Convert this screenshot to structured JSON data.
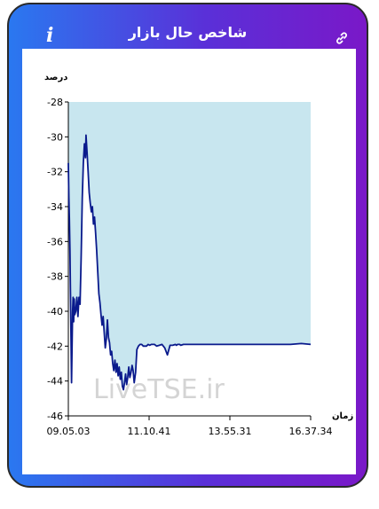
{
  "header": {
    "title": "شاخص حال بازار",
    "info_icon": "info-icon",
    "share_icon": "link-icon"
  },
  "watermark": "LiveTSE.ir",
  "colors": {
    "gradient_start": "#2a78f0",
    "gradient_end": "#7a18c8",
    "area_fill": "#c8e6ef",
    "line": "#0a1a8c",
    "watermark": "#d4d4d4"
  },
  "chart_data": {
    "type": "area",
    "ylabel": "درصد",
    "xlabel": "زمان",
    "ylim": [
      -46,
      -28
    ],
    "yticks": [
      "-28",
      "-30",
      "-32",
      "-34",
      "-36",
      "-38",
      "-40",
      "-42",
      "-44",
      "-46"
    ],
    "xticks": [
      "09.05.03",
      "11.10.41",
      "13.55.31",
      "16.37.34"
    ],
    "x": [
      "09:05:03",
      "09:06:00",
      "09:07:00",
      "09:08:00",
      "09:09:00",
      "09:10:00",
      "09:11:00",
      "09:12:00",
      "09:13:00",
      "09:14:00",
      "09:15:00",
      "09:16:00",
      "09:17:00",
      "09:19:00",
      "09:21:00",
      "09:23:00",
      "09:25:00",
      "09:27:00",
      "09:29:00",
      "09:31:00",
      "09:33:00",
      "09:35:00",
      "09:37:00",
      "09:38:00",
      "09:40:00",
      "09:42:00",
      "09:44:00",
      "09:46:00",
      "09:48:00",
      "09:50:00",
      "09:52:00",
      "09:54:00",
      "09:56:00",
      "09:58:00",
      "10:00:00",
      "10:02:00",
      "10:04:00",
      "10:06:00",
      "10:08:00",
      "10:10:00",
      "10:12:00",
      "10:14:00",
      "10:16:00",
      "10:18:00",
      "10:20:00",
      "10:22:00",
      "10:24:00",
      "10:26:00",
      "10:28:00",
      "10:30:00",
      "10:32:00",
      "10:34:00",
      "10:36:00",
      "10:38:00",
      "10:40:00",
      "10:42:00",
      "10:44:00",
      "10:46:00",
      "10:48:00",
      "10:50:00",
      "10:52:00",
      "10:54:00",
      "10:56:00",
      "10:58:00",
      "11:00:00",
      "11:02:00",
      "11:04:00",
      "11:06:00",
      "11:08:00",
      "11:10:41",
      "11:13:00",
      "11:16:00",
      "11:19:00",
      "11:22:00",
      "11:25:00",
      "11:28:00",
      "11:31:00",
      "11:34:00",
      "11:37:00",
      "11:40:00",
      "11:43:00",
      "11:46:00",
      "11:50:00",
      "11:55:00",
      "12:00:00",
      "12:05:00",
      "12:10:00",
      "12:15:00",
      "12:20:00",
      "12:25:00",
      "12:27:00",
      "12:29:00",
      "12:31:00",
      "12:33:00",
      "12:35:00",
      "12:40:00",
      "13:00:00",
      "13:30:00",
      "14:00:00",
      "14:30:00",
      "15:00:00",
      "15:30:00",
      "16:00:00",
      "16:20:00",
      "16:37:34"
    ],
    "values": [
      -31.5,
      -33.5,
      -34.8,
      -36.5,
      -39,
      -41.5,
      -44.1,
      -42,
      -40,
      -39.2,
      -40.6,
      -39.3,
      -40.2,
      -40,
      -39.2,
      -40.3,
      -39.2,
      -39.6,
      -37,
      -33.5,
      -31.5,
      -30.4,
      -31.2,
      -29.9,
      -30.9,
      -32,
      -33.2,
      -33.8,
      -34.3,
      -34,
      -35,
      -34.6,
      -35.5,
      -36.5,
      -37.8,
      -39,
      -39.5,
      -40.2,
      -40.8,
      -40.3,
      -41.2,
      -42.1,
      -41.6,
      -40.5,
      -41.5,
      -41.8,
      -42.5,
      -42.3,
      -43,
      -43.4,
      -42.8,
      -43.5,
      -43,
      -43.7,
      -43.2,
      -43.9,
      -43.5,
      -44.3,
      -44.5,
      -44.1,
      -43.6,
      -44.2,
      -43.8,
      -43.2,
      -43.8,
      -43.5,
      -43.1,
      -43.4,
      -44.1,
      -43.5,
      -42.2,
      -42,
      -41.9,
      -41.9,
      -42,
      -42,
      -42,
      -41.9,
      -41.95,
      -41.9,
      -41.9,
      -41.9,
      -42,
      -41.95,
      -41.9,
      -42.1,
      -42.5,
      -41.95,
      -41.95,
      -41.9,
      -41.95,
      -41.9,
      -41.9,
      -41.9,
      -41.95,
      -41.9,
      -41.9,
      -41.9,
      -41.9,
      -41.9,
      -41.9,
      -41.9,
      -41.9,
      -41.85,
      -41.9
    ],
    "legend": "none",
    "grid": false
  }
}
